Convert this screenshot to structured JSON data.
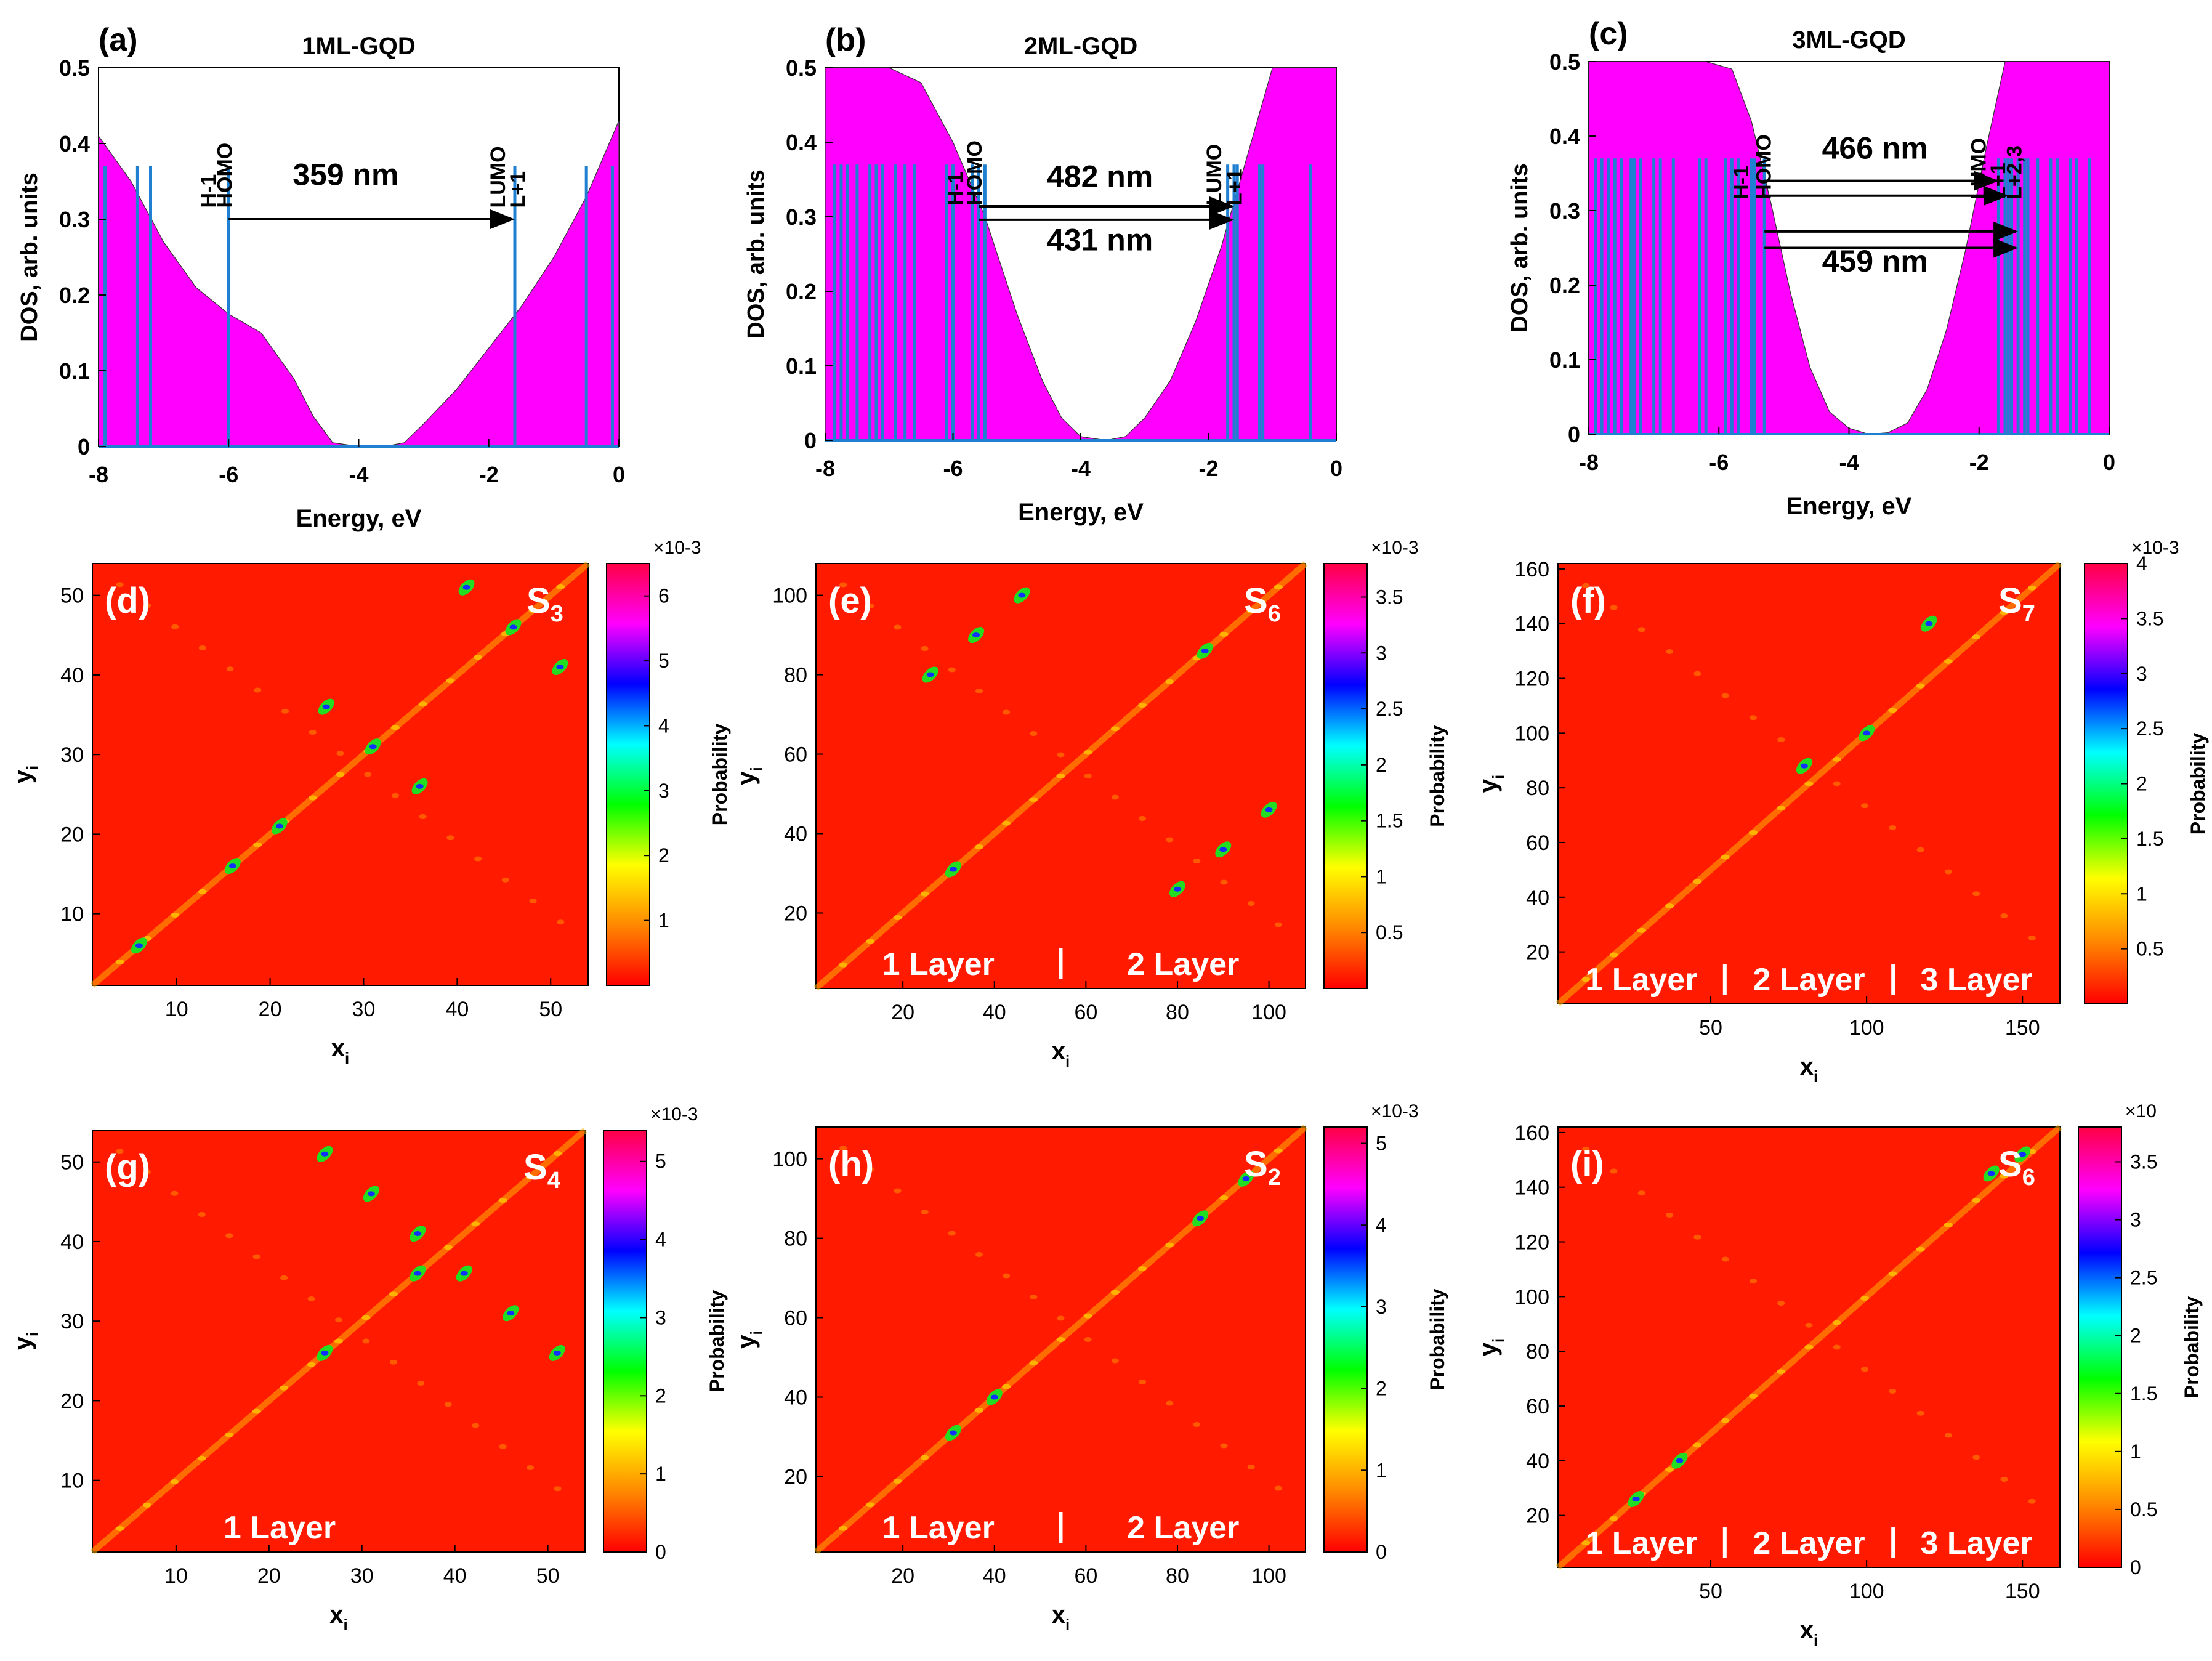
{
  "figure": {
    "colors": {
      "dos_fill": "#ff00ff",
      "levels": "#1f7fd0",
      "arrow": "#000000",
      "heatmap_background": "#ff1a00",
      "layer_label": "#ffffff"
    },
    "colormap": [
      "#ff0000",
      "#ff8800",
      "#ffff00",
      "#00ff00",
      "#00ffff",
      "#0000ff",
      "#ff00ff",
      "#ff0044"
    ]
  },
  "chart_data": [
    {
      "id": "a",
      "type": "area",
      "panel_label": "(a)",
      "title": "1ML-GQD",
      "xlabel": "Energy, eV",
      "ylabel": "DOS, arb. units",
      "xlim": [
        -8,
        0
      ],
      "ylim": [
        0,
        0.5
      ],
      "xticks": [
        "-8",
        "-6",
        "-4",
        "-2",
        "0"
      ],
      "yticks": [
        "0",
        "0.1",
        "0.2",
        "0.3",
        "0.4",
        "0.5"
      ],
      "series": [
        {
          "x": [
            -8,
            -7.5,
            -7,
            -6.5,
            -6,
            -5.5,
            -5,
            -4.7,
            -4.4,
            -4,
            -3.6,
            -3.3,
            -3,
            -2.5,
            -2,
            -1.5,
            -1,
            -0.5,
            0
          ],
          "y": [
            0.41,
            0.35,
            0.27,
            0.21,
            0.175,
            0.15,
            0.09,
            0.04,
            0.005,
            0.0,
            0.0,
            0.005,
            0.03,
            0.075,
            0.13,
            0.185,
            0.25,
            0.33,
            0.43
          ]
        }
      ],
      "levels": [
        -7.9,
        -7.4,
        -7.2,
        -6.0,
        -1.6,
        -0.5,
        -0.1
      ],
      "level_labels": [
        {
          "text": "H-1",
          "x": -6.2
        },
        {
          "text": "HOMO",
          "x": -5.95
        },
        {
          "text": "LUMO",
          "x": -1.75
        },
        {
          "text": "L+1",
          "x": -1.45
        }
      ],
      "arrows": [
        {
          "x1": -6.0,
          "x2": -1.6,
          "y": 0.3
        }
      ],
      "annotations": [
        {
          "text": "359 nm",
          "x": -4.2,
          "y": 0.345
        }
      ]
    },
    {
      "id": "b",
      "type": "area",
      "panel_label": "(b)",
      "title": "2ML-GQD",
      "xlabel": "Energy, eV",
      "ylabel": "DOS, arb. units",
      "xlim": [
        -8,
        0
      ],
      "ylim": [
        0,
        0.5
      ],
      "xticks": [
        "-8",
        "-6",
        "-4",
        "-2",
        "0"
      ],
      "yticks": [
        "0",
        "0.1",
        "0.2",
        "0.3",
        "0.4",
        "0.5"
      ],
      "series": [
        {
          "x": [
            -8,
            -7,
            -6.5,
            -6,
            -5.5,
            -5,
            -4.6,
            -4.3,
            -4,
            -3.6,
            -3.3,
            -3,
            -2.6,
            -2.2,
            -1.8,
            -1.4,
            -1,
            -0.6,
            0
          ],
          "y": [
            0.5,
            0.5,
            0.48,
            0.4,
            0.3,
            0.17,
            0.08,
            0.03,
            0.005,
            0.0,
            0.005,
            0.03,
            0.08,
            0.16,
            0.26,
            0.38,
            0.5,
            0.5,
            0.5
          ]
        }
      ],
      "levels": [
        -7.85,
        -7.75,
        -7.65,
        -7.5,
        -7.3,
        -7.2,
        -7.1,
        -6.9,
        -6.75,
        -6.6,
        -6.1,
        -6.0,
        -5.7,
        -5.6,
        -5.5,
        -1.7,
        -1.6,
        -1.55,
        -1.2,
        -1.15,
        -0.4
      ],
      "level_labels": [
        {
          "text": "H-1",
          "x": -5.85
        },
        {
          "text": "HOMO",
          "x": -5.55
        },
        {
          "text": "LUMO",
          "x": -1.8
        },
        {
          "text": "L+1",
          "x": -1.48
        }
      ],
      "arrows": [
        {
          "x1": -5.6,
          "x2": -1.6,
          "y": 0.314
        },
        {
          "x1": -5.6,
          "x2": -1.6,
          "y": 0.296
        }
      ],
      "annotations": [
        {
          "text": "482 nm",
          "x": -3.7,
          "y": 0.34
        },
        {
          "text": "431 nm",
          "x": -3.7,
          "y": 0.255
        }
      ]
    },
    {
      "id": "c",
      "type": "area",
      "panel_label": "(c)",
      "title": "3ML-GQD",
      "xlabel": "Energy, eV",
      "ylabel": "DOS, arb. units",
      "xlim": [
        -8,
        0
      ],
      "ylim": [
        0,
        0.5
      ],
      "xticks": [
        "-8",
        "-6",
        "-4",
        "-2",
        "0"
      ],
      "yticks": [
        "0",
        "0.1",
        "0.2",
        "0.3",
        "0.4",
        "0.5"
      ],
      "series": [
        {
          "x": [
            -8,
            -6.2,
            -5.8,
            -5.5,
            -5.2,
            -4.9,
            -4.6,
            -4.3,
            -4.0,
            -3.7,
            -3.4,
            -3.1,
            -2.8,
            -2.5,
            -2.2,
            -1.9,
            -1.6,
            -1.3,
            0
          ],
          "y": [
            0.5,
            0.5,
            0.49,
            0.42,
            0.31,
            0.19,
            0.09,
            0.03,
            0.008,
            0.0,
            0.002,
            0.015,
            0.06,
            0.14,
            0.25,
            0.38,
            0.5,
            0.5,
            0.5
          ]
        }
      ],
      "levels": [
        -7.9,
        -7.8,
        -7.7,
        -7.6,
        -7.5,
        -7.35,
        -7.3,
        -7.2,
        -7.0,
        -6.9,
        -6.7,
        -6.3,
        -6.2,
        -5.9,
        -5.8,
        -5.7,
        -5.5,
        -5.45,
        -5.3,
        -1.7,
        -1.6,
        -1.55,
        -1.5,
        -1.4,
        -1.3,
        -1.25,
        -1.1,
        -0.9,
        -0.8,
        -0.6,
        -0.5,
        -0.3
      ],
      "level_labels": [
        {
          "text": "H-1",
          "x": -5.55
        },
        {
          "text": "HOMO",
          "x": -5.2
        },
        {
          "text": "LUMO",
          "x": -1.9
        },
        {
          "text": "L+1",
          "x": -1.6
        },
        {
          "text": "L+2,3",
          "x": -1.35
        }
      ],
      "arrows": [
        {
          "x1": -5.3,
          "x2": -1.7,
          "y": 0.34
        },
        {
          "x1": -5.3,
          "x2": -1.55,
          "y": 0.32
        },
        {
          "x1": -5.3,
          "x2": -1.4,
          "y": 0.272
        },
        {
          "x1": -5.3,
          "x2": -1.4,
          "y": 0.25
        }
      ],
      "annotations": [
        {
          "text": "466 nm",
          "x": -3.6,
          "y": 0.37
        },
        {
          "text": "459 nm",
          "x": -3.6,
          "y": 0.218
        }
      ]
    },
    {
      "id": "d",
      "type": "heatmap",
      "panel_label": "(d)",
      "state": "S",
      "state_sub": "3",
      "xlabel": "x",
      "xlabel_sub": "i",
      "ylabel": "y",
      "ylabel_sub": "i",
      "xlim": [
        1,
        54
      ],
      "ylim": [
        1,
        54
      ],
      "xticks": [
        10,
        20,
        30,
        40,
        50
      ],
      "yticks": [
        10,
        20,
        30,
        40,
        50
      ],
      "colorbar_label": "Probability",
      "colorbar_exponent": "×10-3",
      "colorbar_max": 6.5,
      "colorbar_ticks": [
        1,
        2,
        3,
        4,
        5,
        6
      ],
      "layers": [],
      "dividers": [],
      "hotspots": [
        [
          41,
          51
        ],
        [
          46,
          46
        ],
        [
          51,
          41
        ],
        [
          26,
          36
        ],
        [
          31,
          31
        ],
        [
          36,
          26
        ],
        [
          6,
          6
        ],
        [
          16,
          16
        ],
        [
          21,
          21
        ]
      ]
    },
    {
      "id": "e",
      "type": "heatmap",
      "panel_label": "(e)",
      "state": "S",
      "state_sub": "6",
      "xlabel": "x",
      "xlabel_sub": "i",
      "ylabel": "y",
      "ylabel_sub": "i",
      "xlim": [
        1,
        108
      ],
      "ylim": [
        1,
        108
      ],
      "xticks": [
        20,
        40,
        60,
        80,
        100
      ],
      "yticks": [
        20,
        40,
        60,
        80,
        100
      ],
      "colorbar_label": "Probability",
      "colorbar_exponent": "×10-3",
      "colorbar_max": 3.8,
      "colorbar_ticks": [
        0.5,
        1,
        1.5,
        2,
        2.5,
        3,
        3.5
      ],
      "layers": [
        "1 Layer",
        "2 Layer"
      ],
      "dividers": [
        54.5
      ],
      "hotspots": [
        [
          26,
          80
        ],
        [
          36,
          90
        ],
        [
          46,
          100
        ],
        [
          31,
          31
        ],
        [
          80,
          26
        ],
        [
          90,
          36
        ],
        [
          100,
          46
        ],
        [
          86,
          86
        ]
      ]
    },
    {
      "id": "f",
      "type": "heatmap",
      "panel_label": "(f)",
      "state": "S",
      "state_sub": "7",
      "xlabel": "x",
      "xlabel_sub": "i",
      "ylabel": "y",
      "ylabel_sub": "i",
      "xlim": [
        1,
        162
      ],
      "ylim": [
        1,
        162
      ],
      "xticks": [
        50,
        100,
        150
      ],
      "yticks": [
        20,
        40,
        60,
        80,
        100,
        120,
        140,
        160
      ],
      "colorbar_label": "Probability",
      "colorbar_exponent": "×10-3",
      "colorbar_max": 4,
      "colorbar_ticks": [
        0.5,
        1,
        1.5,
        2,
        2.5,
        3,
        3.5,
        4
      ],
      "layers": [
        "1 Layer",
        "2 Layer",
        "3 Layer"
      ],
      "dividers": [
        54.5,
        108.5
      ],
      "hotspots": [
        [
          80,
          88
        ],
        [
          100,
          100
        ],
        [
          120,
          140
        ]
      ]
    },
    {
      "id": "g",
      "type": "heatmap",
      "panel_label": "(g)",
      "state": "S",
      "state_sub": "4",
      "xlabel": "x",
      "xlabel_sub": "i",
      "ylabel": "y",
      "ylabel_sub": "i",
      "xlim": [
        1,
        54
      ],
      "ylim": [
        1,
        54
      ],
      "xticks": [
        10,
        20,
        30,
        40,
        50
      ],
      "yticks": [
        10,
        20,
        30,
        40,
        50
      ],
      "colorbar_label": "Probability",
      "colorbar_exponent": "×10-3",
      "colorbar_max": 5.4,
      "colorbar_ticks": [
        0,
        1,
        2,
        3,
        4,
        5
      ],
      "layers": [
        "1 Layer"
      ],
      "dividers": [],
      "hotspots": [
        [
          26,
          51
        ],
        [
          31,
          46
        ],
        [
          36,
          41
        ],
        [
          41,
          36
        ],
        [
          46,
          31
        ],
        [
          51,
          26
        ],
        [
          26,
          26
        ],
        [
          36,
          36
        ]
      ]
    },
    {
      "id": "h",
      "type": "heatmap",
      "panel_label": "(h)",
      "state": "S",
      "state_sub": "2",
      "xlabel": "x",
      "xlabel_sub": "i",
      "ylabel": "y",
      "ylabel_sub": "i",
      "xlim": [
        1,
        108
      ],
      "ylim": [
        1,
        108
      ],
      "xticks": [
        20,
        40,
        60,
        80,
        100
      ],
      "yticks": [
        20,
        40,
        60,
        80,
        100
      ],
      "colorbar_label": "Probability",
      "colorbar_exponent": "×10-3",
      "colorbar_max": 5.2,
      "colorbar_ticks": [
        0,
        1,
        2,
        3,
        4,
        5
      ],
      "layers": [
        "1 Layer",
        "2 Layer"
      ],
      "dividers": [
        54.5
      ],
      "hotspots": [
        [
          31,
          31
        ],
        [
          40,
          40
        ],
        [
          85,
          85
        ],
        [
          95,
          95
        ]
      ]
    },
    {
      "id": "i",
      "type": "heatmap",
      "panel_label": "(i)",
      "state": "S",
      "state_sub": "6",
      "xlabel": "x",
      "xlabel_sub": "i",
      "ylabel": "y",
      "ylabel_sub": "i",
      "xlim": [
        1,
        162
      ],
      "ylim": [
        1,
        162
      ],
      "xticks": [
        50,
        100,
        150
      ],
      "yticks": [
        20,
        40,
        60,
        80,
        100,
        120,
        140,
        160
      ],
      "colorbar_label": "Probability",
      "colorbar_exponent": "×10",
      "colorbar_max": 3.8,
      "colorbar_ticks": [
        0,
        0.5,
        1,
        1.5,
        2,
        2.5,
        3,
        3.5
      ],
      "layers": [
        "1 Layer",
        "2 Layer",
        "3 Layer"
      ],
      "dividers": [
        54.5,
        108.5
      ],
      "hotspots": [
        [
          26,
          26
        ],
        [
          40,
          40
        ],
        [
          140,
          145
        ],
        [
          150,
          152
        ]
      ]
    }
  ]
}
